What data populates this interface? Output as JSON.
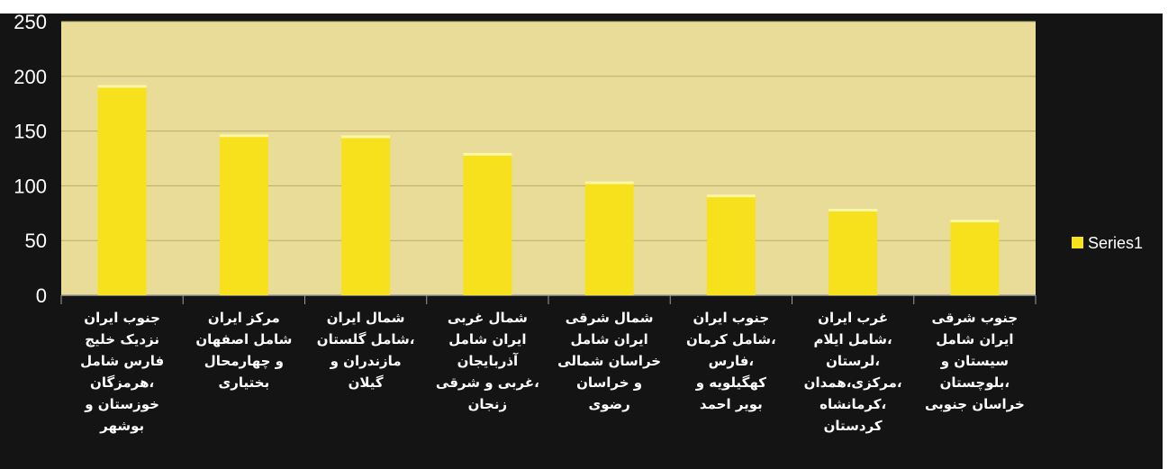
{
  "chart_data": {
    "type": "bar",
    "categories": [
      [
        "جنوب ایران",
        "نزدیک خلیج",
        "فارس شامل",
        "هرمزگان،",
        "خوزستان و",
        "بوشهر"
      ],
      [
        "مرکز ایران",
        "شامل اصفهان",
        "و چهارمحال",
        "بختیاری"
      ],
      [
        "شمال ایران",
        "شامل گلستان،",
        "مازندران و",
        "گیلان"
      ],
      [
        "شمال غربی",
        "ایران شامل",
        "آذربایجان",
        "غربی و شرقی،",
        "زنجان"
      ],
      [
        "شمال شرقی",
        "ایران شامل",
        "خراسان شمالی",
        "و خراسان",
        "رضوی"
      ],
      [
        "جنوب ایران",
        "شامل کرمان،",
        "فارس،",
        "کهگیلویه و",
        "بویر احمد"
      ],
      [
        "غرب ایران",
        "شامل ایلام،",
        "لرستان،",
        "مرکزی،همدان،",
        "کرمانشاه،",
        "کردستان"
      ],
      [
        "جنوب شرقی",
        "ایران شامل",
        "سیستان و",
        "بلوچستان،",
        "خراسان جنوبی"
      ]
    ],
    "series": [
      {
        "name": "Series1",
        "values": [
          192,
          147,
          146,
          130,
          104,
          92,
          79,
          69
        ]
      }
    ],
    "ylim": [
      0,
      250
    ],
    "yticks": [
      "0",
      "50",
      "100",
      "150",
      "200",
      "250"
    ],
    "grid": true,
    "legend": "right",
    "colors": {
      "plot_bg": "#e8dc98",
      "bar": "#f6e11c",
      "page_bg": "#141414",
      "grid": "#b8ab6a",
      "text": "#ffffff"
    }
  }
}
